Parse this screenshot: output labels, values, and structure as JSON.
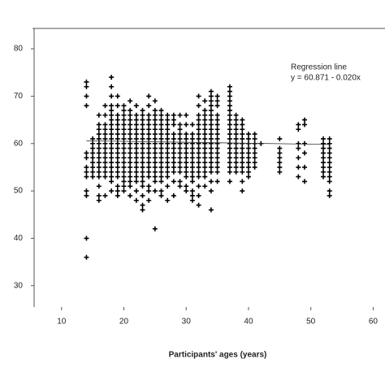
{
  "chart_data": {
    "type": "scatter",
    "xlabel": "Participants' ages (years)",
    "annotations": [
      "Regression line",
      "y = 60.871 - 0.020x"
    ],
    "xlim": [
      5.6,
      61.9
    ],
    "ylim": [
      25.5,
      84.3
    ],
    "xticks": [
      10,
      20,
      30,
      40,
      50,
      60
    ],
    "yticks": [
      30,
      40,
      50,
      60,
      70,
      80
    ],
    "color": "#000000",
    "regression": {
      "x": [
        14,
        53
      ],
      "values": [
        60.59,
        59.81
      ]
    },
    "columns": [
      {
        "x": 14,
        "y": [
          73,
          72,
          70,
          68,
          58,
          57,
          55,
          54,
          53,
          50,
          49,
          40,
          36
        ]
      },
      {
        "x": 15,
        "y": [
          61,
          60,
          59,
          58,
          57,
          56,
          55,
          54,
          53
        ]
      },
      {
        "x": 16,
        "y": [
          66,
          64,
          63,
          62,
          61,
          60,
          59,
          58,
          57,
          56,
          55,
          54,
          53,
          51,
          49,
          48
        ]
      },
      {
        "x": 17,
        "y": [
          68,
          66,
          64,
          63,
          62,
          61,
          60,
          59,
          58,
          57,
          56,
          55,
          54,
          53,
          49
        ]
      },
      {
        "x": 18,
        "y": [
          74,
          72,
          70,
          68,
          67,
          66,
          65,
          64,
          63,
          62,
          61,
          60,
          59,
          58,
          57,
          56,
          55,
          54,
          53,
          52,
          50
        ]
      },
      {
        "x": 19,
        "y": [
          70,
          68,
          66,
          65,
          64,
          63,
          62,
          61,
          60,
          59,
          58,
          57,
          56,
          55,
          54,
          53,
          51,
          50,
          49
        ]
      },
      {
        "x": 20,
        "y": [
          68,
          67,
          66,
          65,
          64,
          63,
          62,
          61,
          60,
          59,
          58,
          57,
          56,
          55,
          54,
          53,
          52,
          51,
          50
        ]
      },
      {
        "x": 21,
        "y": [
          69,
          67,
          66,
          65,
          64,
          63,
          62,
          61,
          60,
          59,
          58,
          57,
          56,
          55,
          54,
          53,
          52,
          51,
          49
        ]
      },
      {
        "x": 22,
        "y": [
          68,
          66,
          65,
          64,
          63,
          62,
          61,
          60,
          59,
          58,
          57,
          56,
          55,
          54,
          53,
          52,
          50,
          48
        ]
      },
      {
        "x": 23,
        "y": [
          67,
          66,
          65,
          64,
          63,
          62,
          61,
          60,
          59,
          58,
          57,
          56,
          55,
          54,
          53,
          52,
          51,
          49,
          47,
          46
        ]
      },
      {
        "x": 24,
        "y": [
          70,
          68,
          66,
          65,
          64,
          63,
          62,
          61,
          60,
          59,
          58,
          57,
          56,
          55,
          54,
          53,
          51,
          50,
          48
        ]
      },
      {
        "x": 25,
        "y": [
          69,
          67,
          66,
          65,
          64,
          63,
          62,
          61,
          60,
          59,
          58,
          57,
          56,
          55,
          54,
          53,
          52,
          50,
          42
        ]
      },
      {
        "x": 26,
        "y": [
          67,
          66,
          65,
          64,
          63,
          62,
          61,
          60,
          59,
          58,
          57,
          56,
          55,
          54,
          53,
          52,
          50,
          49
        ]
      },
      {
        "x": 27,
        "y": [
          66,
          65,
          64,
          63,
          62,
          61,
          60,
          59,
          58,
          57,
          56,
          55,
          54,
          53,
          51,
          48
        ]
      },
      {
        "x": 28,
        "y": [
          66,
          65,
          64,
          62,
          61,
          60,
          59,
          58,
          57,
          56,
          55,
          54,
          52,
          49
        ]
      },
      {
        "x": 29,
        "y": [
          66,
          64,
          63,
          62,
          61,
          60,
          59,
          58,
          57,
          56,
          55,
          54,
          52,
          51
        ]
      },
      {
        "x": 30,
        "y": [
          66,
          64,
          62,
          61,
          60,
          59,
          58,
          57,
          56,
          55,
          54,
          53,
          51,
          50
        ]
      },
      {
        "x": 31,
        "y": [
          64,
          62,
          61,
          60,
          59,
          58,
          57,
          56,
          55,
          54,
          53,
          52,
          50,
          49,
          48
        ]
      },
      {
        "x": 32,
        "y": [
          70,
          68,
          66,
          65,
          64,
          63,
          62,
          61,
          60,
          59,
          58,
          57,
          56,
          55,
          54,
          53,
          51,
          49,
          47
        ]
      },
      {
        "x": 33,
        "y": [
          69,
          67,
          66,
          65,
          64,
          63,
          62,
          61,
          60,
          59,
          58,
          57,
          56,
          55,
          54,
          53,
          51
        ]
      },
      {
        "x": 34,
        "y": [
          71,
          70,
          69,
          68,
          67,
          66,
          65,
          64,
          63,
          62,
          61,
          60,
          59,
          58,
          57,
          56,
          55,
          54,
          52,
          50,
          46
        ]
      },
      {
        "x": 35,
        "y": [
          70,
          69,
          68,
          66,
          65,
          64,
          63,
          62,
          61,
          60,
          59,
          58,
          57,
          56,
          55,
          54,
          52
        ]
      },
      {
        "x": 37,
        "y": [
          72,
          71,
          70,
          69,
          68,
          67,
          66,
          65,
          64,
          63,
          62,
          61,
          60,
          59,
          58,
          57,
          56,
          55,
          54,
          52
        ]
      },
      {
        "x": 38,
        "y": [
          66,
          65,
          64,
          63,
          62,
          61,
          60,
          59,
          58,
          57,
          56,
          55,
          54
        ]
      },
      {
        "x": 39,
        "y": [
          65,
          64,
          63,
          62,
          61,
          60,
          59,
          58,
          57,
          56,
          55,
          54,
          52,
          50
        ]
      },
      {
        "x": 40,
        "y": [
          62,
          61,
          60,
          59,
          58,
          57,
          56,
          55,
          54,
          53
        ]
      },
      {
        "x": 41,
        "y": [
          62,
          61,
          60,
          59,
          58,
          57,
          56,
          55
        ]
      },
      {
        "x": 42,
        "y": [
          60
        ]
      },
      {
        "x": 45,
        "y": [
          61,
          59,
          58,
          57,
          56,
          55,
          54
        ]
      },
      {
        "x": 48,
        "y": [
          64,
          63,
          60,
          59,
          57,
          55,
          53
        ]
      },
      {
        "x": 49,
        "y": [
          65,
          64,
          60,
          58,
          55,
          52
        ]
      },
      {
        "x": 52,
        "y": [
          61,
          60,
          59,
          58,
          57,
          56,
          55,
          54,
          53
        ]
      },
      {
        "x": 53,
        "y": [
          61,
          60,
          59,
          58,
          57,
          56,
          55,
          54,
          53,
          52,
          50,
          49
        ]
      }
    ]
  }
}
